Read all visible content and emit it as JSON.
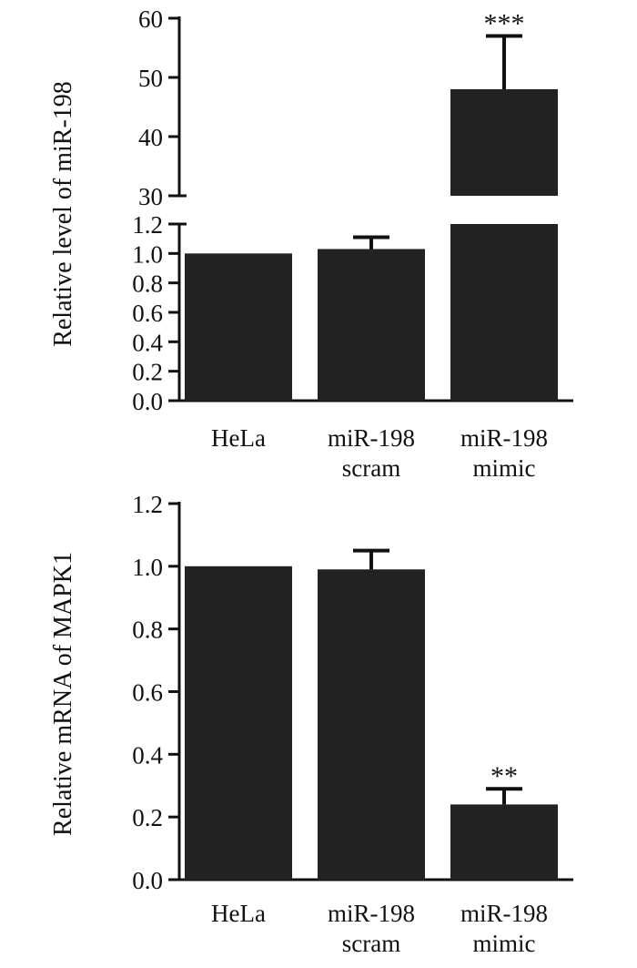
{
  "colors": {
    "bar": "#222222",
    "axis": "#111111",
    "background": "#ffffff"
  },
  "chart_data": [
    {
      "type": "bar",
      "title": "",
      "xlabel": "",
      "ylabel": "Relative level of miR-198",
      "categories": [
        [
          "HeLa"
        ],
        [
          "miR-198",
          "scram"
        ],
        [
          "miR-198",
          "mimic"
        ]
      ],
      "values": [
        1.0,
        1.03,
        48
      ],
      "error_upper": [
        0,
        0.08,
        9
      ],
      "significance": [
        "",
        "",
        "***"
      ],
      "broken_axis": true,
      "ylim_lower": [
        0,
        1.2
      ],
      "ylim_upper": [
        30,
        60
      ],
      "yticks_lower": [
        "0.0",
        "0.2",
        "0.4",
        "0.6",
        "0.8",
        "1.0",
        "1.2"
      ],
      "yticks_upper": [
        "30",
        "40",
        "50",
        "60"
      ],
      "grid": false,
      "legend": "none"
    },
    {
      "type": "bar",
      "title": "",
      "xlabel": "",
      "ylabel": "Relative mRNA of MAPK1",
      "categories": [
        [
          "HeLa"
        ],
        [
          "miR-198",
          "scram"
        ],
        [
          "miR-198",
          "mimic"
        ]
      ],
      "values": [
        1.0,
        0.99,
        0.24
      ],
      "error_upper": [
        0,
        0.06,
        0.05
      ],
      "significance": [
        "",
        "",
        "**"
      ],
      "broken_axis": false,
      "ylim": [
        0,
        1.2
      ],
      "yticks": [
        "0.0",
        "0.2",
        "0.4",
        "0.6",
        "0.8",
        "1.0",
        "1.2"
      ],
      "grid": false,
      "legend": "none"
    }
  ]
}
